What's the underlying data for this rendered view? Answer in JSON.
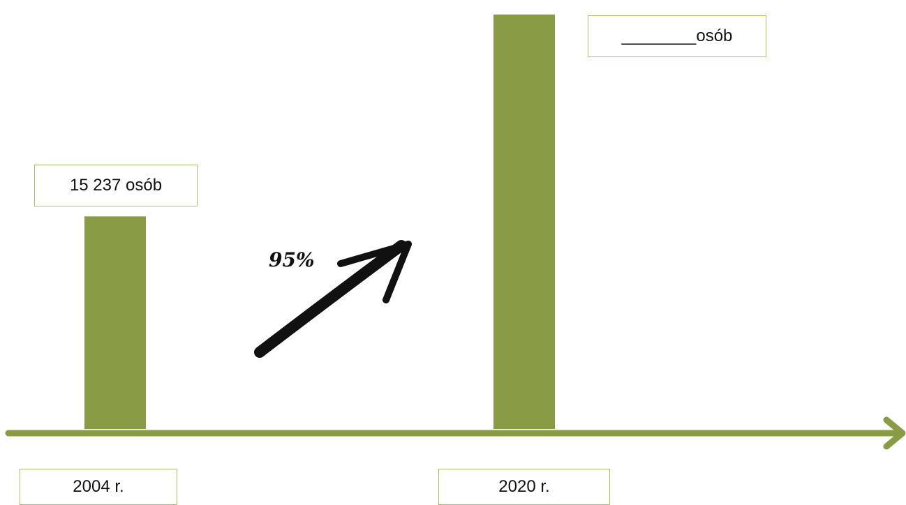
{
  "colors": {
    "bar": "#8a9b45",
    "axis": "#8a9b45",
    "arrow": "#111111",
    "box_border": "#a7c06a"
  },
  "chart_data": {
    "type": "bar",
    "categories": [
      "2004 r.",
      "2020 r."
    ],
    "values": [
      15237,
      29712
    ],
    "ylim": [
      0,
      30000
    ],
    "grid": false,
    "legend": "none",
    "data_labels": [
      "15 237 osób",
      "________osób"
    ],
    "annotation": "95%"
  }
}
